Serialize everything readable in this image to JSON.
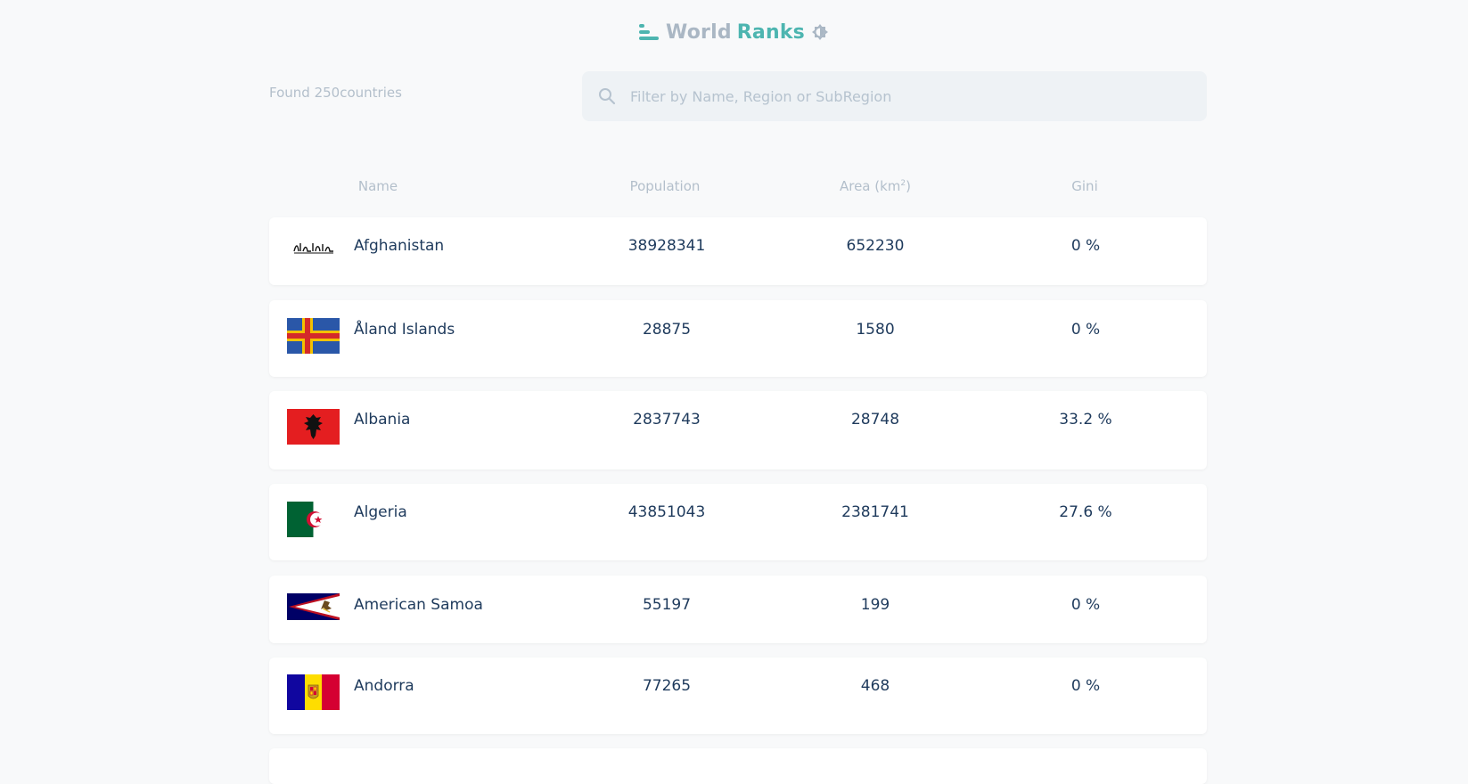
{
  "header": {
    "title_world": "World",
    "title_ranks": "Ranks",
    "logo_icon": "bars-logo-icon",
    "theme_icon": "brightness-icon"
  },
  "summary": {
    "found_text": "Found 250countries"
  },
  "search": {
    "placeholder": "Filter by Name, Region or SubRegion",
    "value": "",
    "icon": "search-icon"
  },
  "table": {
    "columns": {
      "name": "Name",
      "population": "Population",
      "area": "Area (km",
      "area_sup": "2",
      "area_close": ")",
      "gini": "Gini"
    },
    "rows": [
      {
        "name": "Afghanistan",
        "population": "38928341",
        "area": "652230",
        "gini": "0 %",
        "flag": "flag-afghanistan"
      },
      {
        "name": "Åland Islands",
        "population": "28875",
        "area": "1580",
        "gini": "0 %",
        "flag": "flag-aland-islands"
      },
      {
        "name": "Albania",
        "population": "2837743",
        "area": "28748",
        "gini": "33.2 %",
        "flag": "flag-albania"
      },
      {
        "name": "Algeria",
        "population": "43851043",
        "area": "2381741",
        "gini": "27.6 %",
        "flag": "flag-algeria"
      },
      {
        "name": "American Samoa",
        "population": "55197",
        "area": "199",
        "gini": "0 %",
        "flag": "flag-american-samoa"
      },
      {
        "name": "Andorra",
        "population": "77265",
        "area": "468",
        "gini": "0 %",
        "flag": "flag-andorra"
      }
    ]
  },
  "colors": {
    "background": "#f8f9fa",
    "accent": "#4db5b0",
    "muted": "#b3bfcb",
    "text": "#1e3a5c",
    "search_bg": "#eef2f5"
  }
}
